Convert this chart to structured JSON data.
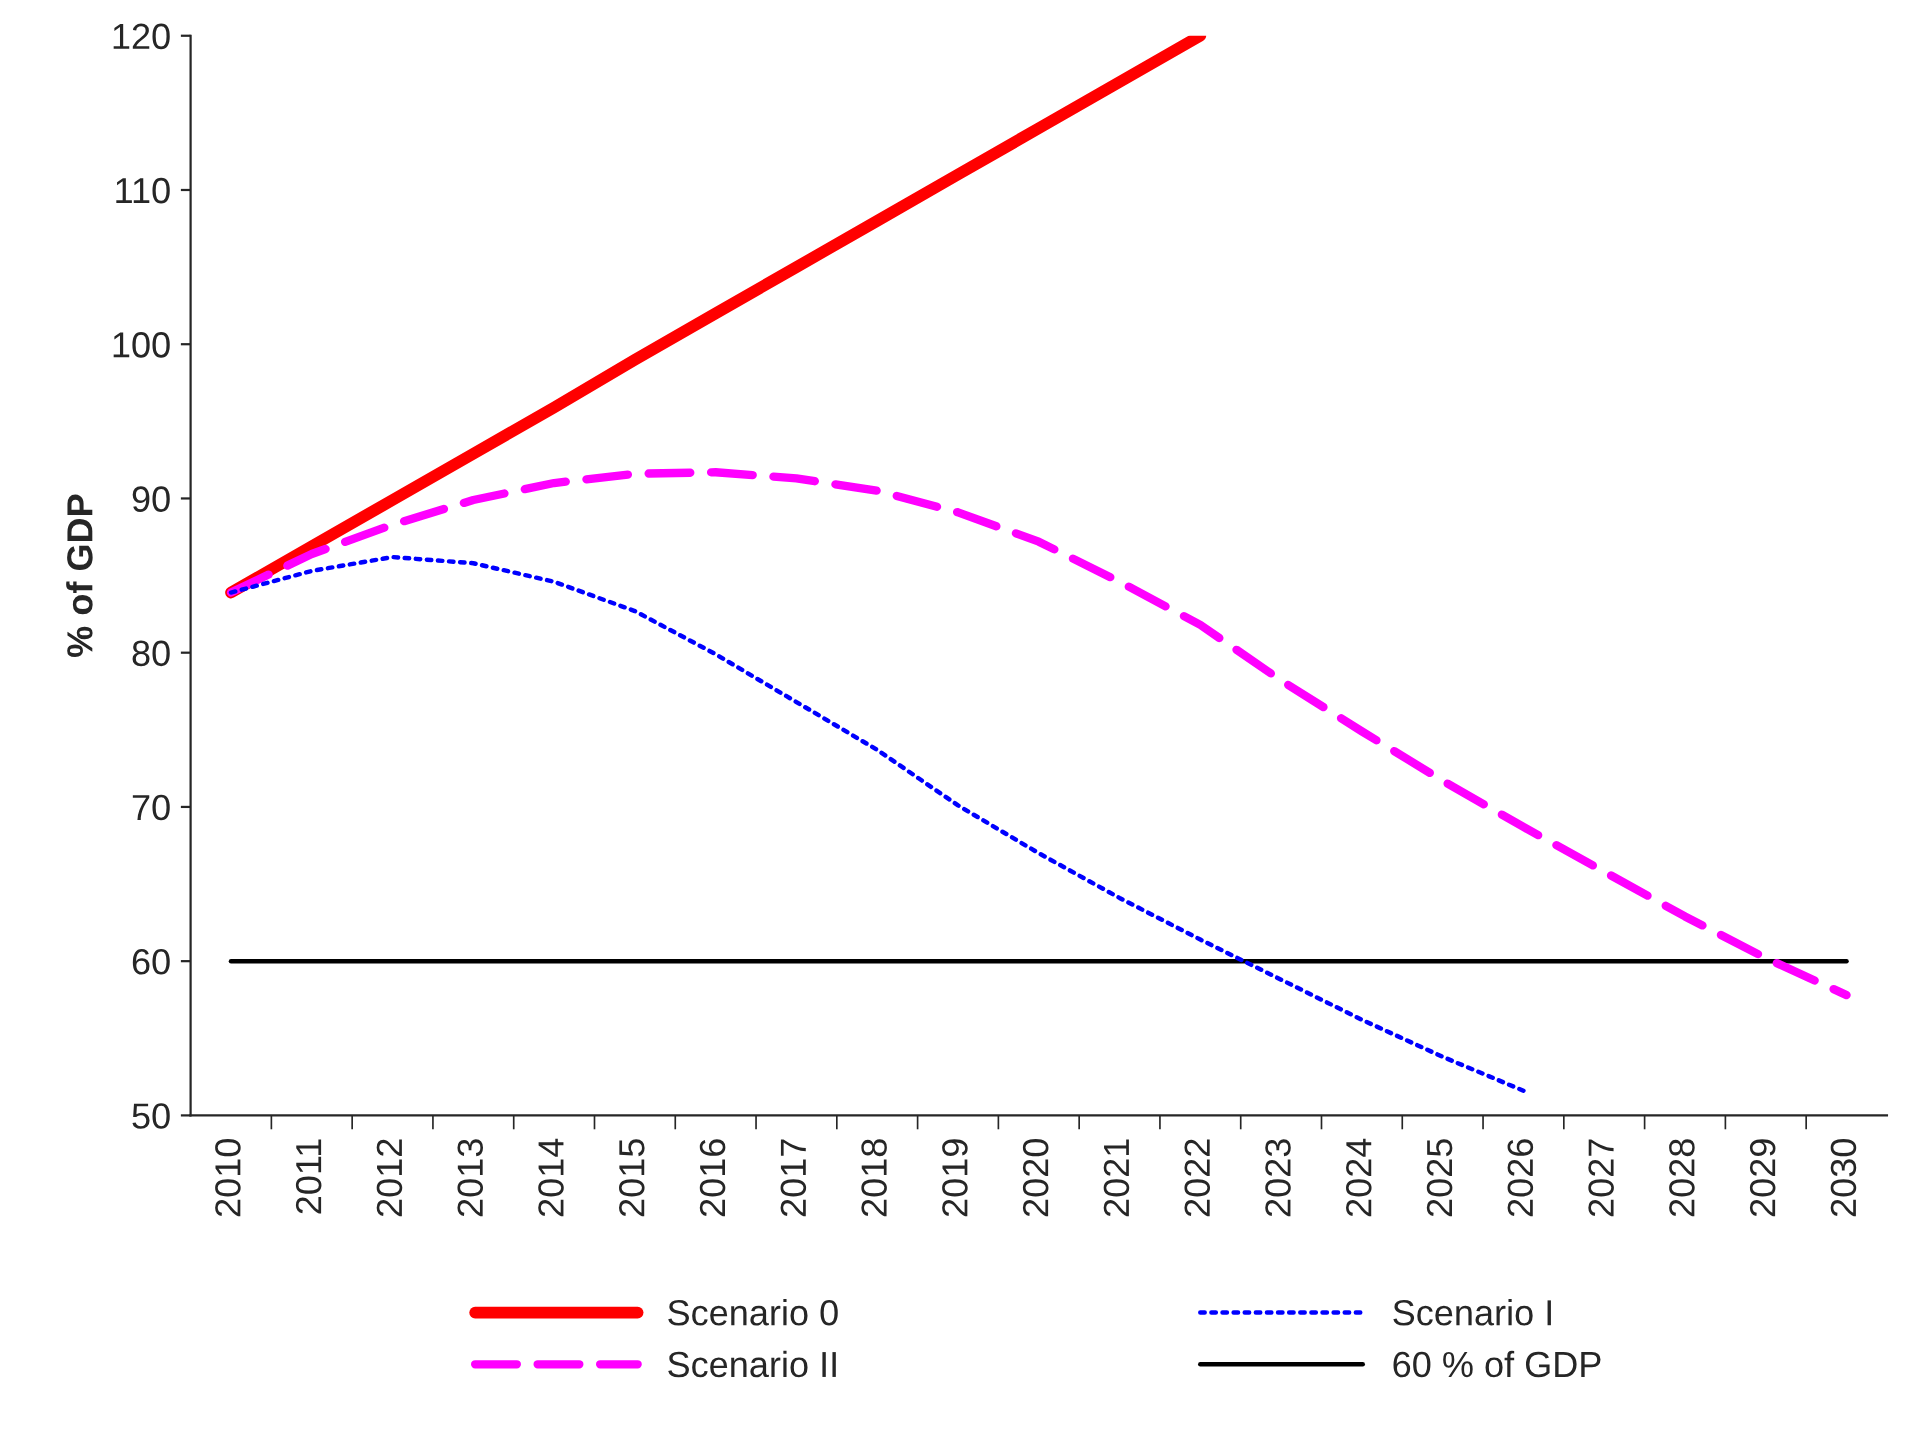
{
  "chart_data": {
    "type": "line",
    "ylabel": "% of GDP",
    "categories": [
      "2010",
      "2011",
      "2012",
      "2013",
      "2014",
      "2015",
      "2016",
      "2017",
      "2018",
      "2019",
      "2020",
      "2021",
      "2022",
      "2023",
      "2024",
      "2025",
      "2026",
      "2027",
      "2028",
      "2029",
      "2030"
    ],
    "series": [
      {
        "name": "Scenario 0",
        "color": "#ff0000",
        "line_style": "solid",
        "values": [
          83.9,
          86.9,
          89.9,
          92.9,
          95.9,
          99.0,
          102.0,
          105.0,
          108.0,
          111.0,
          114.0,
          117.0,
          120.0,
          null,
          null,
          null,
          null,
          null,
          null,
          null,
          null
        ]
      },
      {
        "name": "Scenario I",
        "color": "#0000ff",
        "line_style": "dotted",
        "values": [
          83.9,
          85.3,
          86.2,
          85.8,
          84.6,
          82.7,
          79.9,
          76.8,
          73.7,
          70.1,
          67.0,
          64.1,
          61.4,
          58.8,
          56.2,
          53.8,
          51.6,
          null,
          null,
          null,
          null
        ]
      },
      {
        "name": "Scenario II",
        "color": "#ff00ff",
        "line_style": "dashed",
        "values": [
          83.9,
          86.4,
          88.3,
          89.9,
          91.0,
          91.6,
          91.7,
          91.3,
          90.5,
          89.1,
          87.2,
          84.6,
          81.8,
          78.2,
          74.9,
          71.7,
          68.7,
          65.8,
          62.9,
          60.2,
          57.8
        ]
      },
      {
        "name": "60 % of GDP",
        "color": "#000000",
        "line_style": "solid",
        "values": [
          60,
          60,
          60,
          60,
          60,
          60,
          60,
          60,
          60,
          60,
          60,
          60,
          60,
          60,
          60,
          60,
          60,
          60,
          60,
          60,
          60
        ]
      }
    ],
    "ylim": [
      50,
      120
    ],
    "yticks": [
      50,
      60,
      70,
      80,
      90,
      100,
      110,
      120
    ],
    "grid": false,
    "legend": "bottom",
    "marker": "none"
  }
}
